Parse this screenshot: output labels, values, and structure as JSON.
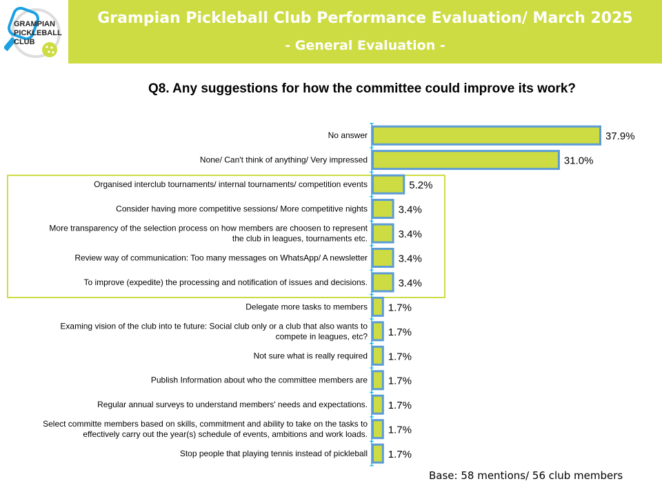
{
  "header": {
    "title": "Grampian Pickleball Club Performance Evaluation/ March 2025",
    "subtitle": "- General Evaluation -",
    "logo_text": "GRAMPIAN PICKLEBALL CLUB"
  },
  "colors": {
    "brand": "#cddc43",
    "bar_fill": "#cddc43",
    "bar_border": "#5b9bd5",
    "axis": "#00b0f0"
  },
  "chart_data": {
    "type": "bar",
    "orientation": "horizontal",
    "title": "Q8. Any suggestions for how the committee could improve its work?",
    "categories": [
      [
        "No answer"
      ],
      [
        "None/ Can't think of anything/ Very impressed"
      ],
      [
        "Organised interclub tournaments/ internal tournaments/ competition events"
      ],
      [
        "Consider having more competitive sessions/ More competitive nights"
      ],
      [
        "More transparency of the selection process on how members are choosen to represent",
        "the club in leagues, tournaments etc."
      ],
      [
        "Review way of communication: Too many messages on WhatsApp/ A newsletter"
      ],
      [
        "To improve (expedite) the processing and notification of issues and decisions."
      ],
      [
        "Delegate more tasks to members"
      ],
      [
        "Examing vision of the club into te future: Social club only or a club that also wants to",
        "compete in leagues, etc?"
      ],
      [
        "Not sure what is really required"
      ],
      [
        "Publish Information about who the committee members are"
      ],
      [
        "Regular annual surveys to understand members' needs and expectations."
      ],
      [
        "Select committe members based on skills, commitment and ability to take on the tasks to",
        "effectively carry out the year(s) schedule of events, ambitions and work loads."
      ],
      [
        "Stop people that playing tennis instead of pickleball"
      ]
    ],
    "values": [
      37.9,
      31.0,
      5.2,
      3.4,
      3.4,
      3.4,
      3.4,
      1.7,
      1.7,
      1.7,
      1.7,
      1.7,
      1.7,
      1.7
    ],
    "value_labels": [
      "37.9%",
      "31.0%",
      "5.2%",
      "3.4%",
      "3.4%",
      "3.4%",
      "3.4%",
      "1.7%",
      "1.7%",
      "1.7%",
      "1.7%",
      "1.7%",
      "1.7%",
      "1.7%"
    ],
    "highlighted_categories": [
      2,
      6
    ],
    "xlim": [
      0,
      40
    ],
    "grid": false,
    "footnote": "Base: 58 mentions/ 56 club members"
  }
}
